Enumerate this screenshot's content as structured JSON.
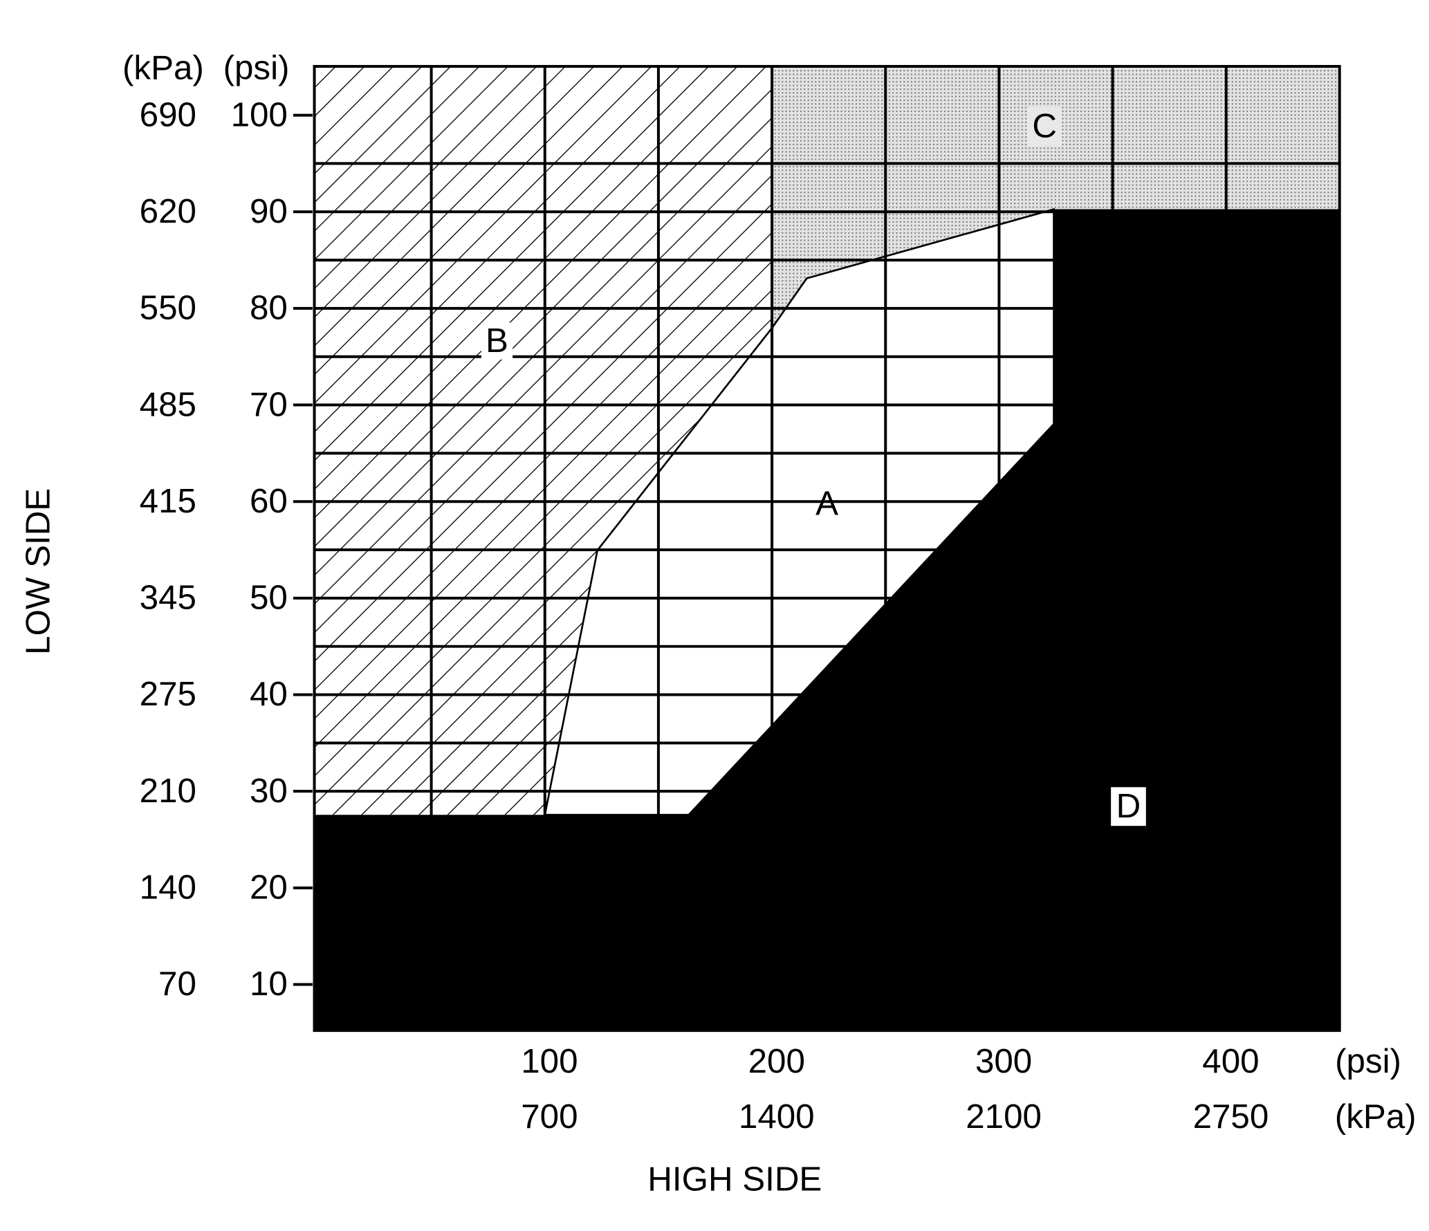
{
  "axes": {
    "y_label": "LOW SIDE",
    "x_label": "HIGH SIDE",
    "y_units": [
      "(kPa)",
      "(psi)"
    ],
    "y_ticks": [
      {
        "kpa": 690,
        "psi": 100
      },
      {
        "kpa": 620,
        "psi": 90
      },
      {
        "kpa": 550,
        "psi": 80
      },
      {
        "kpa": 485,
        "psi": 70
      },
      {
        "kpa": 415,
        "psi": 60
      },
      {
        "kpa": 345,
        "psi": 50
      },
      {
        "kpa": 275,
        "psi": 40
      },
      {
        "kpa": 210,
        "psi": 30
      },
      {
        "kpa": 140,
        "psi": 20
      },
      {
        "kpa": 70,
        "psi": 10
      }
    ],
    "x_units": [
      "(psi)",
      "(kPa)"
    ],
    "x_ticks": [
      {
        "psi": 100,
        "kpa": 700
      },
      {
        "psi": 200,
        "kpa": 1400
      },
      {
        "psi": 300,
        "kpa": 2100
      },
      {
        "psi": 400,
        "kpa": 2750
      }
    ]
  },
  "regions": {
    "a": "A",
    "b": "B",
    "c": "C",
    "d": "D"
  }
}
